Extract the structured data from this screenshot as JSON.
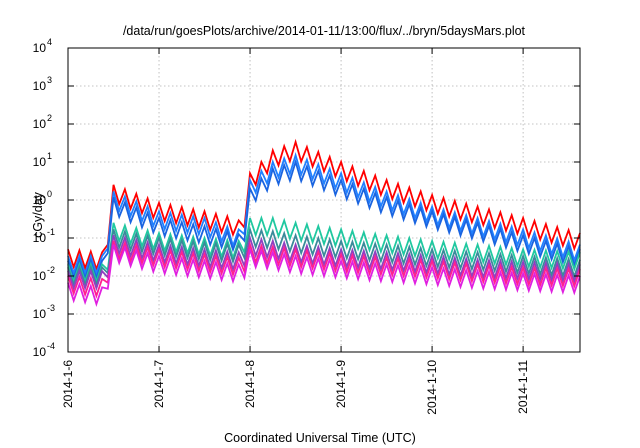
{
  "chart_data": {
    "type": "line",
    "title": "/data/run/goesPlots/archive/2014-01-11/13:00/flux/../bryn/5daysMars.plot",
    "xlabel": "Coordinated Universal Time (UTC)",
    "ylabel": "cGy/day",
    "yscale": "log",
    "ylim": [
      0.0001,
      10000
    ],
    "xlim": [
      "2014-01-06",
      "2014-01-11 15:00"
    ],
    "grid": true,
    "legend": "none",
    "x_ticks": [
      "2014-1-6",
      "2014-1-7",
      "2014-1-8",
      "2014-1-9",
      "2014-1-10",
      "2014-1-11"
    ],
    "y_ticks": [
      {
        "base": "10",
        "exp": "-4"
      },
      {
        "base": "10",
        "exp": "-3"
      },
      {
        "base": "10",
        "exp": "-2"
      },
      {
        "base": "10",
        "exp": "-1"
      },
      {
        "base": "10",
        "exp": "0"
      },
      {
        "base": "10",
        "exp": "1"
      },
      {
        "base": "10",
        "exp": "2"
      },
      {
        "base": "10",
        "exp": "3"
      },
      {
        "base": "10",
        "exp": "4"
      }
    ],
    "sawtooth_period_hours": 3,
    "sawtooth_amplitude_decades": 0.45,
    "series": [
      {
        "color": "#ff0000",
        "x": [
          "2014-01-06 00:00",
          "2014-01-06 08:00",
          "2014-01-06 10:00",
          "2014-01-06 11:00",
          "2014-01-06 12:00",
          "2014-01-07 00:00",
          "2014-01-07 12:00",
          "2014-01-07 20:00",
          "2014-01-07 22:00",
          "2014-01-08 00:00",
          "2014-01-08 06:00",
          "2014-01-08 12:00",
          "2014-01-09 00:00",
          "2014-01-09 12:00",
          "2014-01-10 00:00",
          "2014-01-10 12:00",
          "2014-01-11 00:00",
          "2014-01-11 15:00"
        ],
        "y": [
          0.03,
          0.025,
          0.025,
          0.5,
          1.5,
          0.5,
          0.3,
          0.2,
          0.15,
          3,
          12,
          20,
          6,
          2,
          0.8,
          0.4,
          0.2,
          0.08
        ]
      },
      {
        "color": "#2080ff",
        "x": [
          "2014-01-06 00:00",
          "2014-01-06 08:00",
          "2014-01-06 10:00",
          "2014-01-06 11:00",
          "2014-01-06 12:00",
          "2014-01-07 00:00",
          "2014-01-07 12:00",
          "2014-01-07 20:00",
          "2014-01-07 22:00",
          "2014-01-08 00:00",
          "2014-01-08 06:00",
          "2014-01-08 12:00",
          "2014-01-09 00:00",
          "2014-01-09 12:00",
          "2014-01-10 00:00",
          "2014-01-10 12:00",
          "2014-01-11 00:00",
          "2014-01-11 15:00"
        ],
        "y": [
          0.02,
          0.02,
          0.02,
          0.4,
          1.0,
          0.3,
          0.2,
          0.1,
          0.1,
          2,
          6,
          9,
          3,
          1,
          0.4,
          0.2,
          0.1,
          0.04
        ]
      },
      {
        "color": "#1a64e0",
        "x": [
          "2014-01-06 00:00",
          "2014-01-06 08:00",
          "2014-01-06 10:00",
          "2014-01-06 11:00",
          "2014-01-06 12:00",
          "2014-01-07 00:00",
          "2014-01-07 12:00",
          "2014-01-07 20:00",
          "2014-01-07 22:00",
          "2014-01-08 00:00",
          "2014-01-08 06:00",
          "2014-01-08 12:00",
          "2014-01-09 00:00",
          "2014-01-09 12:00",
          "2014-01-10 00:00",
          "2014-01-10 12:00",
          "2014-01-11 00:00",
          "2014-01-11 15:00"
        ],
        "y": [
          0.015,
          0.015,
          0.015,
          0.3,
          0.7,
          0.2,
          0.12,
          0.08,
          0.07,
          1.2,
          4,
          6,
          2,
          0.7,
          0.3,
          0.15,
          0.07,
          0.03
        ]
      },
      {
        "color": "#20c8a0",
        "x": [
          "2014-01-06 00:00",
          "2014-01-06 08:00",
          "2014-01-06 10:00",
          "2014-01-06 11:00",
          "2014-01-06 12:00",
          "2014-01-07 00:00",
          "2014-01-07 12:00",
          "2014-01-07 20:00",
          "2014-01-07 22:00",
          "2014-01-08 00:00",
          "2014-01-08 06:00",
          "2014-01-08 12:00",
          "2014-01-09 00:00",
          "2014-01-09 12:00",
          "2014-01-10 00:00",
          "2014-01-10 12:00",
          "2014-01-11 00:00",
          "2014-01-11 15:00"
        ],
        "y": [
          0.012,
          0.012,
          0.012,
          0.05,
          0.15,
          0.08,
          0.06,
          0.05,
          0.05,
          0.2,
          0.2,
          0.15,
          0.1,
          0.07,
          0.05,
          0.04,
          0.03,
          0.025
        ]
      },
      {
        "color": "#3a8a9a",
        "x": [
          "2014-01-06 00:00",
          "2014-01-06 08:00",
          "2014-01-06 10:00",
          "2014-01-06 11:00",
          "2014-01-06 12:00",
          "2014-01-07 00:00",
          "2014-01-07 12:00",
          "2014-01-07 20:00",
          "2014-01-07 22:00",
          "2014-01-08 00:00",
          "2014-01-08 06:00",
          "2014-01-08 12:00",
          "2014-01-09 00:00",
          "2014-01-09 12:00",
          "2014-01-10 00:00",
          "2014-01-10 12:00",
          "2014-01-11 00:00",
          "2014-01-11 15:00"
        ],
        "y": [
          0.01,
          0.01,
          0.01,
          0.04,
          0.1,
          0.06,
          0.045,
          0.04,
          0.04,
          0.1,
          0.09,
          0.07,
          0.05,
          0.04,
          0.03,
          0.025,
          0.02,
          0.016
        ]
      },
      {
        "color": "#9040c0",
        "x": [
          "2014-01-06 00:00",
          "2014-01-06 08:00",
          "2014-01-06 10:00",
          "2014-01-06 11:00",
          "2014-01-06 12:00",
          "2014-01-07 00:00",
          "2014-01-07 12:00",
          "2014-01-07 20:00",
          "2014-01-07 22:00",
          "2014-01-08 00:00",
          "2014-01-08 06:00",
          "2014-01-08 12:00",
          "2014-01-09 00:00",
          "2014-01-09 12:00",
          "2014-01-10 00:00",
          "2014-01-10 12:00",
          "2014-01-11 00:00",
          "2014-01-11 15:00"
        ],
        "y": [
          0.008,
          0.008,
          0.008,
          0.03,
          0.07,
          0.04,
          0.03,
          0.025,
          0.025,
          0.06,
          0.05,
          0.04,
          0.03,
          0.025,
          0.02,
          0.016,
          0.014,
          0.012
        ]
      },
      {
        "color": "#ff2090",
        "x": [
          "2014-01-06 00:00",
          "2014-01-06 08:00",
          "2014-01-06 10:00",
          "2014-01-06 11:00",
          "2014-01-06 12:00",
          "2014-01-07 00:00",
          "2014-01-07 12:00",
          "2014-01-07 20:00",
          "2014-01-07 22:00",
          "2014-01-08 00:00",
          "2014-01-08 06:00",
          "2014-01-08 12:00",
          "2014-01-09 00:00",
          "2014-01-09 12:00",
          "2014-01-10 00:00",
          "2014-01-10 12:00",
          "2014-01-11 00:00",
          "2014-01-11 15:00"
        ],
        "y": [
          0.006,
          0.005,
          0.005,
          0.025,
          0.05,
          0.03,
          0.022,
          0.018,
          0.018,
          0.04,
          0.035,
          0.03,
          0.022,
          0.018,
          0.015,
          0.012,
          0.01,
          0.009
        ]
      },
      {
        "color": "#e020e0",
        "x": [
          "2014-01-06 00:00",
          "2014-01-06 08:00",
          "2014-01-06 10:00",
          "2014-01-06 11:00",
          "2014-01-06 12:00",
          "2014-01-07 00:00",
          "2014-01-07 12:00",
          "2014-01-07 20:00",
          "2014-01-07 22:00",
          "2014-01-08 00:00",
          "2014-01-08 06:00",
          "2014-01-08 12:00",
          "2014-01-09 00:00",
          "2014-01-09 12:00",
          "2014-01-10 00:00",
          "2014-01-10 12:00",
          "2014-01-11 00:00",
          "2014-01-11 15:00"
        ],
        "y": [
          0.004,
          0.003,
          0.003,
          0.02,
          0.04,
          0.02,
          0.015,
          0.012,
          0.012,
          0.03,
          0.025,
          0.02,
          0.015,
          0.012,
          0.01,
          0.008,
          0.007,
          0.006
        ]
      }
    ]
  }
}
